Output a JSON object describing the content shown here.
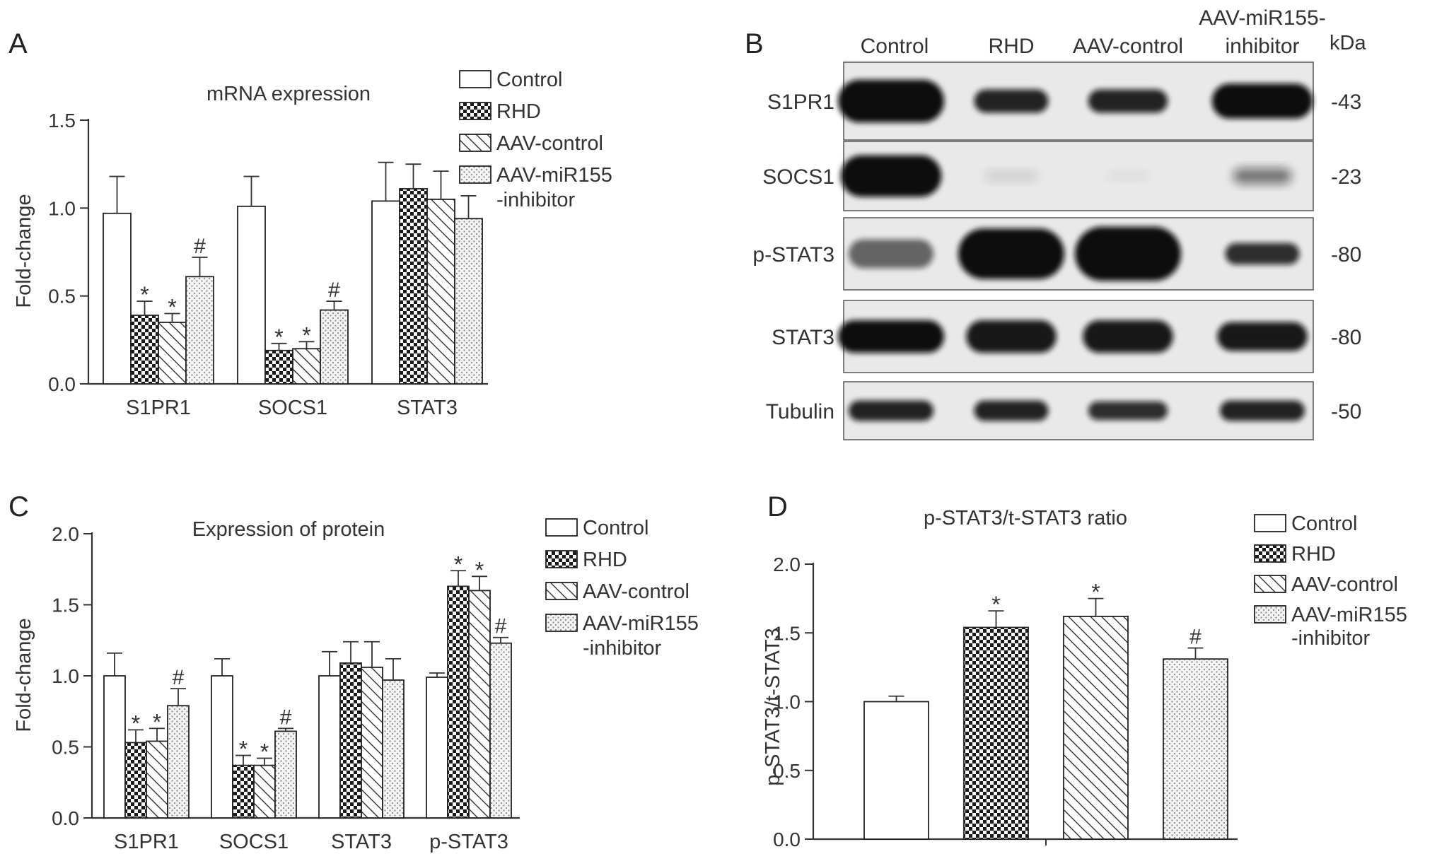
{
  "panels": {
    "A": {
      "letter": "A",
      "chart_data": {
        "type": "bar",
        "title": "mRNA expression",
        "xlabel": "",
        "ylabel": "Fold-change",
        "ylim": [
          0,
          1.5
        ],
        "yticks": [
          "0.0",
          "0.5",
          "1.0",
          "1.5"
        ],
        "yticks_values": [
          0,
          0.5,
          1.0,
          1.5
        ],
        "categories": [
          "S1PR1",
          "SOCS1",
          "STAT3"
        ],
        "series": [
          {
            "name": "Control",
            "values": [
              0.97,
              1.01,
              1.04
            ],
            "errors": [
              0.21,
              0.17,
              0.22
            ],
            "marks": [
              "",
              "",
              ""
            ]
          },
          {
            "name": "RHD",
            "values": [
              0.39,
              0.19,
              1.11
            ],
            "errors": [
              0.08,
              0.04,
              0.14
            ],
            "marks": [
              "*",
              "*",
              ""
            ]
          },
          {
            "name": "AAV-control",
            "values": [
              0.35,
              0.2,
              1.05
            ],
            "errors": [
              0.05,
              0.04,
              0.16
            ],
            "marks": [
              "*",
              "*",
              ""
            ]
          },
          {
            "name": "AAV-miR155 -inhibitor",
            "values": [
              0.61,
              0.42,
              0.94
            ],
            "errors": [
              0.11,
              0.05,
              0.13
            ],
            "marks": [
              "#",
              "#",
              ""
            ]
          }
        ],
        "legend": {
          "placement": "top-right",
          "labels": [
            "Control",
            "RHD",
            "AAV-control",
            "AAV-miR155",
            "-inhibitor"
          ]
        },
        "grid": false
      }
    },
    "B": {
      "letter": "B",
      "columns": [
        "Control",
        "RHD",
        "AAV-control",
        "AAV-miR155-",
        "inhibitor"
      ],
      "unit_label": "kDa",
      "rows": [
        {
          "label": "S1PR1",
          "kda": "-43"
        },
        {
          "label": "SOCS1",
          "kda": "-23"
        },
        {
          "label": "p-STAT3",
          "kda": "-80"
        },
        {
          "label": "STAT3",
          "kda": "-80"
        },
        {
          "label": "Tubulin",
          "kda": "-50"
        }
      ]
    },
    "C": {
      "letter": "C",
      "chart_data": {
        "type": "bar",
        "title": "Expression of protein",
        "xlabel": "",
        "ylabel": "Fold-change",
        "ylim": [
          0,
          2.0
        ],
        "yticks": [
          "0.0",
          "0.5",
          "1.0",
          "1.5",
          "2.0"
        ],
        "yticks_values": [
          0,
          0.5,
          1.0,
          1.5,
          2.0
        ],
        "categories": [
          "S1PR1",
          "SOCS1",
          "STAT3",
          "p-STAT3"
        ],
        "series": [
          {
            "name": "Control",
            "values": [
              1.0,
              1.0,
              1.0,
              0.99
            ],
            "errors": [
              0.16,
              0.12,
              0.17,
              0.03
            ],
            "marks": [
              "",
              "",
              "",
              ""
            ]
          },
          {
            "name": "RHD",
            "values": [
              0.53,
              0.37,
              1.09,
              1.63
            ],
            "errors": [
              0.09,
              0.07,
              0.15,
              0.11
            ],
            "marks": [
              "*",
              "*",
              "",
              "*"
            ]
          },
          {
            "name": "AAV-control",
            "values": [
              0.54,
              0.37,
              1.06,
              1.6
            ],
            "errors": [
              0.09,
              0.05,
              0.18,
              0.1
            ],
            "marks": [
              "*",
              "*",
              "",
              "*"
            ]
          },
          {
            "name": "AAV-miR155 -inhibitor",
            "values": [
              0.79,
              0.61,
              0.97,
              1.23
            ],
            "errors": [
              0.12,
              0.02,
              0.15,
              0.04
            ],
            "marks": [
              "#",
              "#",
              "",
              "#"
            ]
          }
        ],
        "legend": {
          "placement": "top-right",
          "labels": [
            "Control",
            "RHD",
            "AAV-control",
            "AAV-miR155",
            "-inhibitor"
          ]
        },
        "grid": false
      }
    },
    "D": {
      "letter": "D",
      "chart_data": {
        "type": "bar",
        "title": "p-STAT3/t-STAT3 ratio",
        "xlabel": "",
        "ylabel": "p-STAT3/t-STAT3",
        "ylim": [
          0,
          2.0
        ],
        "yticks": [
          "0.0",
          "0.5",
          "1.0",
          "1.5",
          "2.0"
        ],
        "yticks_values": [
          0,
          0.5,
          1.0,
          1.5,
          2.0
        ],
        "categories": [
          ""
        ],
        "series": [
          {
            "name": "Control",
            "values": [
              1.0
            ],
            "errors": [
              0.04
            ],
            "marks": [
              ""
            ]
          },
          {
            "name": "RHD",
            "values": [
              1.54
            ],
            "errors": [
              0.12
            ],
            "marks": [
              "*"
            ]
          },
          {
            "name": "AAV-control",
            "values": [
              1.62
            ],
            "errors": [
              0.13
            ],
            "marks": [
              "*"
            ]
          },
          {
            "name": "AAV-miR155 -inhibitor",
            "values": [
              1.31
            ],
            "errors": [
              0.08
            ],
            "marks": [
              "#"
            ]
          }
        ],
        "legend": {
          "placement": "top-right",
          "labels": [
            "Control",
            "RHD",
            "AAV-control",
            "AAV-miR155",
            "-inhibitor"
          ]
        },
        "grid": false
      }
    }
  },
  "colors": {
    "axis": "#333333",
    "bar_stroke": "#222222",
    "fill": "#ffffff",
    "blot_band": "#111111",
    "blot_bg": "#e9e9e9"
  },
  "patterns": [
    "none",
    "checker",
    "diagonal",
    "dots"
  ]
}
